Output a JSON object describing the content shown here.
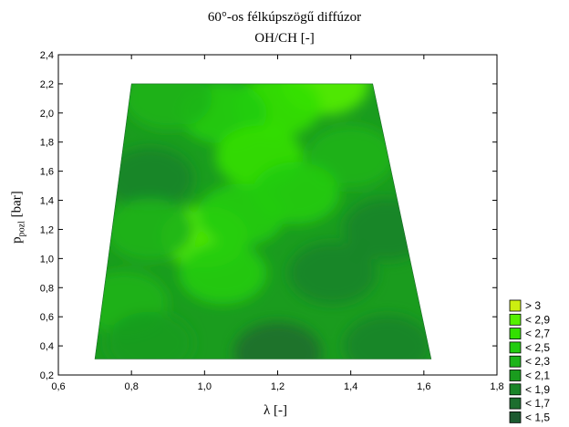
{
  "chart_data": {
    "type": "contour",
    "title": "60°-os félkúpszögű diffúzor",
    "subtitle": "OH/CH [-]",
    "xlabel": "λ [-]",
    "ylabel_main": "p",
    "ylabel_sub": "pozl",
    "ylabel_unit": " [bar]",
    "xlim": [
      0.6,
      1.8
    ],
    "ylim": [
      0.2,
      2.4
    ],
    "xticks": [
      "0,6",
      "0,8",
      "1,0",
      "1,2",
      "1,4",
      "1,6",
      "1,8"
    ],
    "yticks": [
      "0,2",
      "0,4",
      "0,6",
      "0,8",
      "1,0",
      "1,2",
      "1,4",
      "1,6",
      "1,8",
      "2,0",
      "2,2",
      "2,4"
    ],
    "domain_polygon": [
      [
        0.8,
        2.2
      ],
      [
        1.46,
        2.2
      ],
      [
        1.62,
        0.31
      ],
      [
        0.7,
        0.31
      ]
    ],
    "levels": [
      1.5,
      1.7,
      1.9,
      2.1,
      2.3,
      2.5,
      2.7,
      2.9,
      3.0
    ],
    "legend": [
      {
        "label": "> 3",
        "color": "#ccee11"
      },
      {
        "label": "< 2,9",
        "color": "#55f000"
      },
      {
        "label": "< 2,7",
        "color": "#33e000"
      },
      {
        "label": "< 2,5",
        "color": "#22cc10"
      },
      {
        "label": "< 2,3",
        "color": "#1cb41a"
      },
      {
        "label": "< 2,1",
        "color": "#1a9c1e"
      },
      {
        "label": "< 1,9",
        "color": "#1a8428"
      },
      {
        "label": "< 1,7",
        "color": "#1c6e2e"
      },
      {
        "label": "< 1,5",
        "color": "#1c5a30"
      }
    ],
    "field_samples": [
      {
        "x": 1.33,
        "y": 2.2,
        "value": 3.0
      },
      {
        "x": 1.2,
        "y": 2.05,
        "value": 2.5
      },
      {
        "x": 1.05,
        "y": 2.0,
        "value": 2.4
      },
      {
        "x": 0.9,
        "y": 2.1,
        "value": 2.2
      },
      {
        "x": 0.85,
        "y": 1.55,
        "value": 1.8
      },
      {
        "x": 1.15,
        "y": 1.7,
        "value": 2.6
      },
      {
        "x": 1.4,
        "y": 1.7,
        "value": 2.1
      },
      {
        "x": 1.25,
        "y": 1.45,
        "value": 2.45
      },
      {
        "x": 1.0,
        "y": 1.15,
        "value": 2.7
      },
      {
        "x": 1.1,
        "y": 1.3,
        "value": 2.4
      },
      {
        "x": 0.85,
        "y": 1.2,
        "value": 2.1
      },
      {
        "x": 1.05,
        "y": 0.9,
        "value": 2.45
      },
      {
        "x": 1.35,
        "y": 0.9,
        "value": 1.85
      },
      {
        "x": 1.5,
        "y": 1.2,
        "value": 1.8
      },
      {
        "x": 0.78,
        "y": 0.7,
        "value": 2.25
      },
      {
        "x": 1.2,
        "y": 0.35,
        "value": 1.6
      },
      {
        "x": 1.5,
        "y": 0.4,
        "value": 1.7
      },
      {
        "x": 0.85,
        "y": 0.42,
        "value": 2.0
      }
    ]
  }
}
